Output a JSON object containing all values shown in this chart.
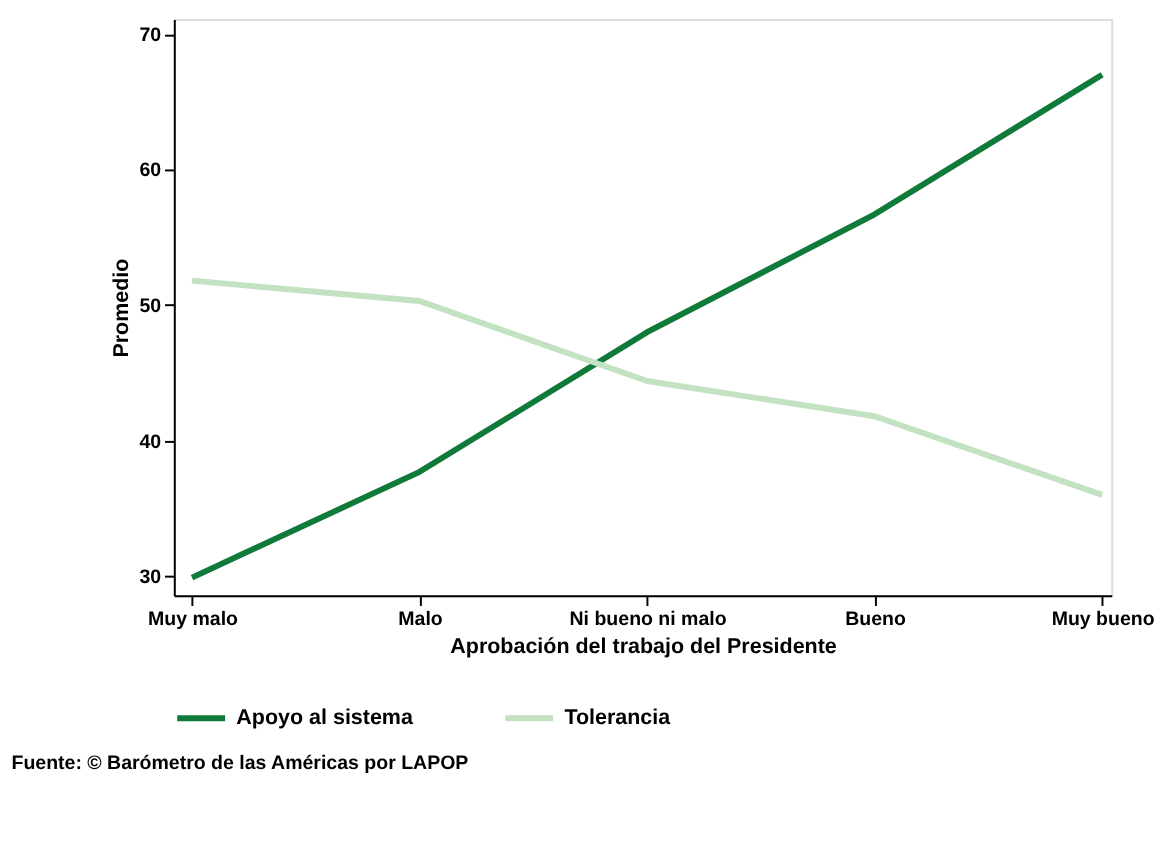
{
  "chart_data": {
    "type": "line",
    "xlabel": "Aprobación del trabajo del Presidente",
    "ylabel": "Promedio",
    "categories": [
      "Muy malo",
      "Malo",
      "Ni bueno ni malo",
      "Bueno",
      "Muy bueno"
    ],
    "series": [
      {
        "name": "Apoyo al sistema",
        "color": "#107a3a",
        "values": [
          29.9,
          37.7,
          48.0,
          56.7,
          67.0
        ]
      },
      {
        "name": "Tolerancia",
        "color": "#c2e2c2",
        "values": [
          51.8,
          50.3,
          44.4,
          41.8,
          36.0
        ]
      }
    ],
    "ylim": [
      28.6,
      71.1
    ],
    "yticks": [
      30,
      40,
      50,
      60,
      70
    ],
    "grid": false,
    "legend": "bottom",
    "marker": "none",
    "line_style": "solid",
    "annotations": [
      "Fuente: © Barómetro de las Américas por LAPOP"
    ]
  }
}
